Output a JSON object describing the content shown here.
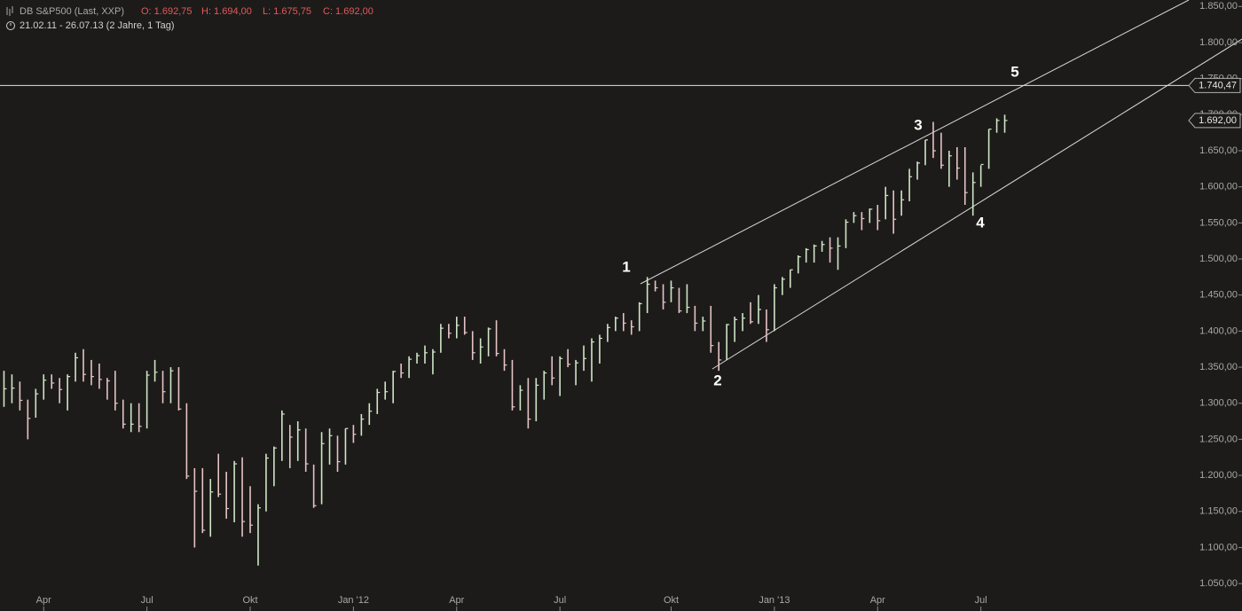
{
  "chart_data": {
    "type": "hlc",
    "title": "DB S&P500 (Last, XXP)",
    "quote": [
      "O: 1.692,75",
      "H: 1.694,00",
      "L: 1.675,75",
      "C: 1.692,00"
    ],
    "date_range": "21.02.11 - 26.07.13 (2 Jahre, 1 Tag)",
    "categories": [
      null,
      null,
      null,
      null,
      null,
      "Apr",
      null,
      null,
      null,
      null,
      null,
      null,
      null,
      null,
      null,
      null,
      null,
      null,
      "Jul",
      null,
      null,
      null,
      null,
      null,
      null,
      null,
      null,
      null,
      null,
      null,
      null,
      "Okt",
      null,
      null,
      null,
      null,
      null,
      null,
      null,
      null,
      null,
      null,
      null,
      null,
      "Jan '12",
      null,
      null,
      null,
      null,
      null,
      null,
      null,
      null,
      null,
      null,
      null,
      null,
      "Apr",
      null,
      null,
      null,
      null,
      null,
      null,
      null,
      null,
      null,
      null,
      null,
      null,
      "Jul",
      null,
      null,
      null,
      null,
      null,
      null,
      null,
      null,
      null,
      null,
      null,
      null,
      null,
      "Okt",
      null,
      null,
      null,
      null,
      null,
      null,
      null,
      null,
      null,
      null,
      null,
      null,
      "Jan '13",
      null,
      null,
      null,
      null,
      null,
      null,
      null,
      null,
      null,
      null,
      null,
      null,
      "Apr",
      null,
      null,
      null,
      null,
      null,
      null,
      null,
      null,
      null,
      null,
      null,
      null,
      "Jul",
      null,
      null,
      null
    ],
    "high": [
      1345,
      1340,
      1330,
      1305,
      1320,
      1340,
      1340,
      1335,
      1340,
      1370,
      1375,
      1360,
      1355,
      1335,
      1345,
      1305,
      1300,
      1300,
      1345,
      1360,
      1345,
      1350,
      1350,
      1300,
      1210,
      1210,
      1195,
      1230,
      1205,
      1220,
      1225,
      1185,
      1160,
      1230,
      1240,
      1290,
      1270,
      1275,
      1265,
      1215,
      1260,
      1265,
      1255,
      1265,
      1270,
      1285,
      1300,
      1320,
      1330,
      1345,
      1355,
      1365,
      1370,
      1380,
      1375,
      1410,
      1410,
      1420,
      1420,
      1400,
      1390,
      1405,
      1415,
      1375,
      1360,
      1325,
      1335,
      1335,
      1345,
      1365,
      1365,
      1375,
      1360,
      1380,
      1390,
      1395,
      1410,
      1420,
      1425,
      1415,
      1440,
      1475,
      1470,
      1465,
      1470,
      1460,
      1465,
      1435,
      1420,
      1435,
      1385,
      1410,
      1420,
      1425,
      1440,
      1450,
      1430,
      1465,
      1475,
      1485,
      1505,
      1515,
      1520,
      1525,
      1530,
      1530,
      1555,
      1565,
      1565,
      1570,
      1575,
      1600,
      1595,
      1595,
      1625,
      1635,
      1665,
      1690,
      1675,
      1650,
      1655,
      1655,
      1620,
      1630,
      1680,
      1695,
      1700
    ],
    "low": [
      1295,
      1300,
      1290,
      1250,
      1280,
      1305,
      1320,
      1300,
      1290,
      1330,
      1330,
      1325,
      1320,
      1305,
      1290,
      1265,
      1260,
      1260,
      1265,
      1330,
      1300,
      1300,
      1290,
      1195,
      1100,
      1120,
      1115,
      1170,
      1140,
      1135,
      1115,
      1120,
      1075,
      1150,
      1185,
      1220,
      1210,
      1220,
      1205,
      1155,
      1160,
      1215,
      1205,
      1215,
      1245,
      1255,
      1270,
      1285,
      1305,
      1300,
      1335,
      1335,
      1355,
      1355,
      1340,
      1370,
      1390,
      1390,
      1395,
      1360,
      1355,
      1365,
      1365,
      1345,
      1290,
      1290,
      1265,
      1275,
      1305,
      1325,
      1310,
      1350,
      1325,
      1345,
      1330,
      1355,
      1385,
      1400,
      1400,
      1395,
      1400,
      1425,
      1455,
      1430,
      1440,
      1425,
      1425,
      1400,
      1400,
      1370,
      1345,
      1360,
      1385,
      1400,
      1410,
      1410,
      1385,
      1400,
      1450,
      1460,
      1480,
      1495,
      1495,
      1510,
      1495,
      1485,
      1515,
      1550,
      1540,
      1550,
      1540,
      1555,
      1535,
      1560,
      1580,
      1610,
      1630,
      1640,
      1625,
      1600,
      1610,
      1575,
      1560,
      1600,
      1625,
      1675,
      1675
    ],
    "close": [
      1320,
      1321,
      1304,
      1279,
      1313,
      1332,
      1328,
      1319,
      1337,
      1363,
      1340,
      1337,
      1333,
      1331,
      1300,
      1271,
      1271,
      1268,
      1339,
      1343,
      1316,
      1345,
      1292,
      1199,
      1178,
      1124,
      1177,
      1174,
      1154,
      1216,
      1136,
      1131,
      1155,
      1224,
      1238,
      1285,
      1253,
      1263,
      1216,
      1158,
      1244,
      1255,
      1219,
      1265,
      1257,
      1278,
      1289,
      1315,
      1316,
      1344,
      1342,
      1361,
      1366,
      1370,
      1371,
      1404,
      1397,
      1408,
      1398,
      1370,
      1378,
      1403,
      1369,
      1353,
      1295,
      1318,
      1278,
      1325,
      1342,
      1335,
      1362,
      1354,
      1356,
      1362,
      1385,
      1390,
      1405,
      1418,
      1411,
      1406,
      1438,
      1465,
      1460,
      1440,
      1460,
      1428,
      1433,
      1411,
      1414,
      1380,
      1360,
      1409,
      1416,
      1418,
      1413,
      1430,
      1402,
      1460,
      1472,
      1485,
      1503,
      1513,
      1518,
      1520,
      1515,
      1518,
      1551,
      1560,
      1556,
      1569,
      1553,
      1588,
      1555,
      1582,
      1614,
      1633,
      1665,
      1650,
      1630,
      1643,
      1626,
      1592,
      1606,
      1631,
      1680,
      1692,
      1692
    ],
    "up_color": "#cfe6c4",
    "down_color": "#e6c4c4",
    "ylim": [
      1012,
      1859
    ],
    "yticks": [
      {
        "value": 1050,
        "label": "1.050,00"
      },
      {
        "value": 1100,
        "label": "1.100,00"
      },
      {
        "value": 1150,
        "label": "1.150,00"
      },
      {
        "value": 1200,
        "label": "1.200,00"
      },
      {
        "value": 1250,
        "label": "1.250,00"
      },
      {
        "value": 1300,
        "label": "1.300,00"
      },
      {
        "value": 1350,
        "label": "1.350,00"
      },
      {
        "value": 1400,
        "label": "1.400,00"
      },
      {
        "value": 1450,
        "label": "1.450,00"
      },
      {
        "value": 1500,
        "label": "1.500,00"
      },
      {
        "value": 1550,
        "label": "1.550,00"
      },
      {
        "value": 1600,
        "label": "1.600,00"
      },
      {
        "value": 1650,
        "label": "1.650,00"
      },
      {
        "value": 1700,
        "label": "1.700,00"
      },
      {
        "value": 1750,
        "label": "1.750,00"
      },
      {
        "value": 1800,
        "label": "1.800,00"
      },
      {
        "value": 1850,
        "label": "1.850,00"
      }
    ],
    "hline": {
      "value": 1740.47,
      "label": "1.740,47"
    },
    "last": {
      "value": 1692,
      "label": "1.692,00"
    },
    "annotations": [
      "1",
      "2",
      "3",
      "4",
      "5"
    ]
  }
}
